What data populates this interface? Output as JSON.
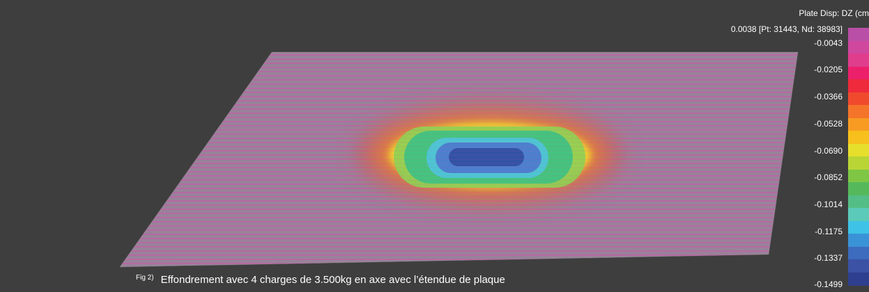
{
  "legend": {
    "title": "Plate Disp: DZ (cm",
    "max_label": "0.0038 [Pt: 31443, Nd: 38983]",
    "ticks": [
      "-0.0043",
      "-0.0205",
      "-0.0366",
      "-0.0528",
      "-0.0690",
      "-0.0852",
      "-0.1014",
      "-0.1175",
      "-0.1337",
      "-0.1499"
    ],
    "colors": [
      "#b94fa6",
      "#d0479e",
      "#e03d8d",
      "#ec1f6b",
      "#ee2a3c",
      "#f04a2d",
      "#f4752a",
      "#f79b23",
      "#f7c01c",
      "#e6df2c",
      "#b8d535",
      "#7fc645",
      "#55b95b",
      "#54be87",
      "#5ccab9",
      "#3ec2e6",
      "#3a93d6",
      "#3d6bbd",
      "#3b52a5",
      "#2f3f8f"
    ]
  },
  "caption": {
    "tag": "Fig 2)",
    "text": "Effondrement avec 4 charges de 3.500kg en axe avec l’étendue de plaque"
  }
}
